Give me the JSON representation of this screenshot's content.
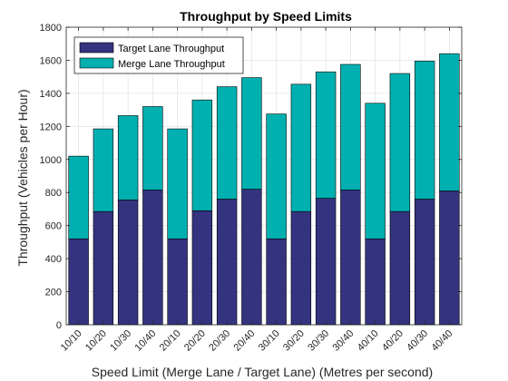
{
  "chart_data": {
    "type": "bar",
    "stacked": true,
    "title": "Throughput by Speed Limits",
    "xlabel": "Speed Limit (Merge Lane / Target Lane) (Metres per second)",
    "ylabel": "Throughput (Vehicles per Hour)",
    "ylim": [
      0,
      1800
    ],
    "yticks": [
      0,
      200,
      400,
      600,
      800,
      1000,
      1200,
      1400,
      1600,
      1800
    ],
    "grid": true,
    "legend_position": "top-left",
    "categories": [
      "10/10",
      "10/20",
      "10/30",
      "10/40",
      "20/10",
      "20/20",
      "20/30",
      "20/40",
      "30/10",
      "30/20",
      "30/30",
      "30/40",
      "40/10",
      "40/20",
      "40/30",
      "40/40"
    ],
    "series": [
      {
        "name": "Target Lane Throughput",
        "color": "#333380",
        "values": [
          520,
          685,
          755,
          815,
          520,
          690,
          760,
          820,
          520,
          685,
          765,
          815,
          520,
          685,
          760,
          810
        ]
      },
      {
        "name": "Merge Lane Throughput",
        "color": "#00B0B0",
        "values": [
          500,
          500,
          510,
          505,
          665,
          670,
          680,
          675,
          755,
          770,
          765,
          760,
          820,
          835,
          835,
          830
        ]
      }
    ]
  }
}
